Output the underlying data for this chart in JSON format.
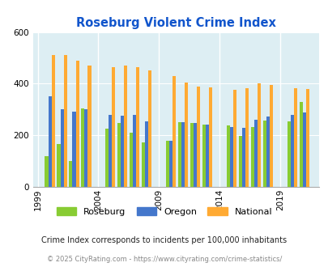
{
  "title": "Roseburg Violent Crime Index",
  "groups": [
    {
      "year": 2000,
      "roseburg": 120,
      "oregon": 352,
      "national": 510
    },
    {
      "year": 2001,
      "roseburg": 165,
      "oregon": 300,
      "national": 510
    },
    {
      "year": 2002,
      "roseburg": 100,
      "oregon": 290,
      "national": 490
    },
    {
      "year": 2003,
      "roseburg": 305,
      "oregon": 300,
      "national": 470
    },
    {
      "year": 2005,
      "roseburg": 225,
      "oregon": 280,
      "national": 465
    },
    {
      "year": 2006,
      "roseburg": 248,
      "oregon": 275,
      "national": 470
    },
    {
      "year": 2007,
      "roseburg": 210,
      "oregon": 280,
      "national": 465
    },
    {
      "year": 2008,
      "roseburg": 172,
      "oregon": 255,
      "national": 450
    },
    {
      "year": 2010,
      "roseburg": 180,
      "oregon": 180,
      "national": 428
    },
    {
      "year": 2011,
      "roseburg": 250,
      "oregon": 250,
      "national": 403
    },
    {
      "year": 2012,
      "roseburg": 248,
      "oregon": 248,
      "national": 390
    },
    {
      "year": 2013,
      "roseburg": 242,
      "oregon": 242,
      "national": 385
    },
    {
      "year": 2015,
      "roseburg": 237,
      "oregon": 232,
      "national": 375
    },
    {
      "year": 2016,
      "roseburg": 198,
      "oregon": 230,
      "national": 383
    },
    {
      "year": 2017,
      "roseburg": 233,
      "oregon": 260,
      "national": 400
    },
    {
      "year": 2018,
      "roseburg": 258,
      "oregon": 272,
      "national": 396
    },
    {
      "year": 2020,
      "roseburg": 253,
      "oregon": 280,
      "national": 383
    },
    {
      "year": 2021,
      "roseburg": 330,
      "oregon": 287,
      "national": 378
    }
  ],
  "gap_years": [
    1999,
    2004,
    2009,
    2014,
    2019
  ],
  "xtick_labels": [
    "1999",
    "2004",
    "2009",
    "2014",
    "2019"
  ],
  "ylim": [
    0,
    600
  ],
  "yticks": [
    0,
    200,
    400,
    600
  ],
  "color_roseburg": "#88cc33",
  "color_oregon": "#4477cc",
  "color_national": "#ffaa33",
  "bg_color": "#ddeef3",
  "title_color": "#1155cc",
  "subtitle": "Crime Index corresponds to incidents per 100,000 inhabitants",
  "footer": "© 2025 CityRating.com - https://www.cityrating.com/crime-statistics/",
  "bar_width": 0.27
}
